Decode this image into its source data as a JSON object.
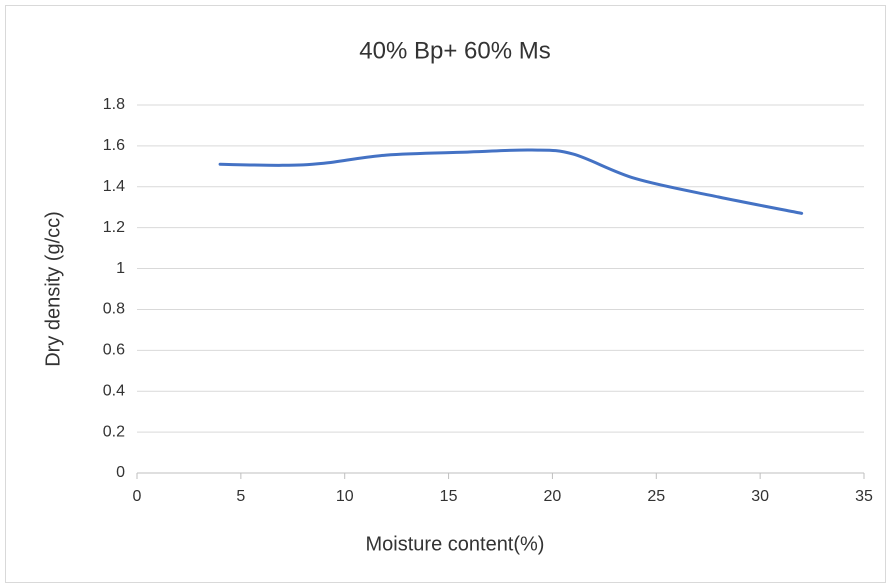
{
  "chart_data": {
    "type": "line",
    "title": "40% Bp+ 60% Ms",
    "x_label": "Moisture content(%)",
    "y_label": "Dry density (g/cc)",
    "x": [
      4,
      7,
      9,
      12,
      16,
      19,
      21,
      24,
      28,
      32
    ],
    "values": [
      1.51,
      1.505,
      1.515,
      1.555,
      1.57,
      1.58,
      1.56,
      1.44,
      1.35,
      1.27
    ],
    "color": "#4472c4",
    "xlim": [
      0,
      35
    ],
    "xticks": [
      0,
      5,
      10,
      15,
      20,
      25,
      30,
      35
    ],
    "ylim": [
      0,
      1.8
    ],
    "yticks": [
      0,
      0.2,
      0.4,
      0.6,
      0.8,
      1,
      1.2,
      1.4,
      1.6,
      1.8
    ],
    "grid": true
  }
}
